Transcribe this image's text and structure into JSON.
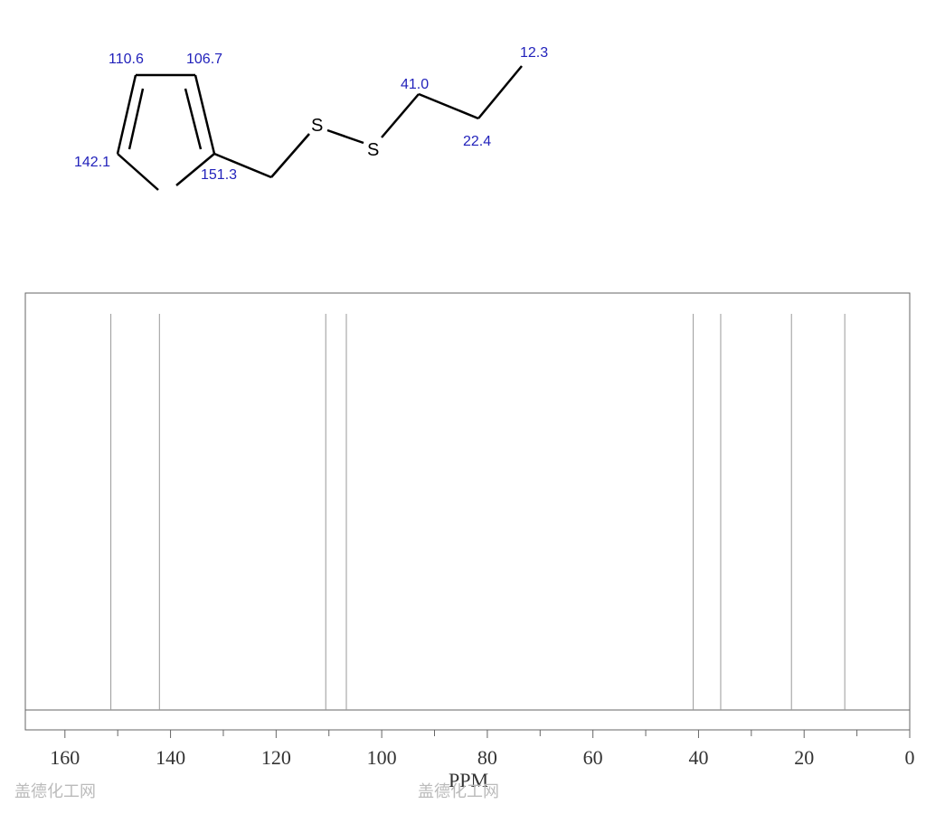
{
  "molecule": {
    "shift_labels": [
      "110.6",
      "106.7",
      "142.1",
      "151.3",
      "41.0",
      "22.4",
      "12.3"
    ],
    "atoms": [
      "S",
      "S"
    ]
  },
  "chart_data": {
    "type": "spectrum",
    "x_label": "PPM",
    "x": [
      151.3,
      142.1,
      110.6,
      106.7,
      41.0,
      35.8,
      22.4,
      12.3
    ],
    "values": [
      0.95,
      0.95,
      0.95,
      0.95,
      0.95,
      0.95,
      0.95,
      0.95
    ],
    "color": "#999999",
    "xlim": [
      167.5,
      0
    ],
    "ylim": [
      0,
      1
    ],
    "xticks": [
      160,
      140,
      120,
      100,
      80,
      60,
      40,
      20,
      0
    ],
    "minor_xticks": [
      150,
      130,
      110,
      90,
      70,
      50,
      30,
      10
    ]
  },
  "watermarks": [
    "盖德化工网",
    "盖德化工网"
  ]
}
